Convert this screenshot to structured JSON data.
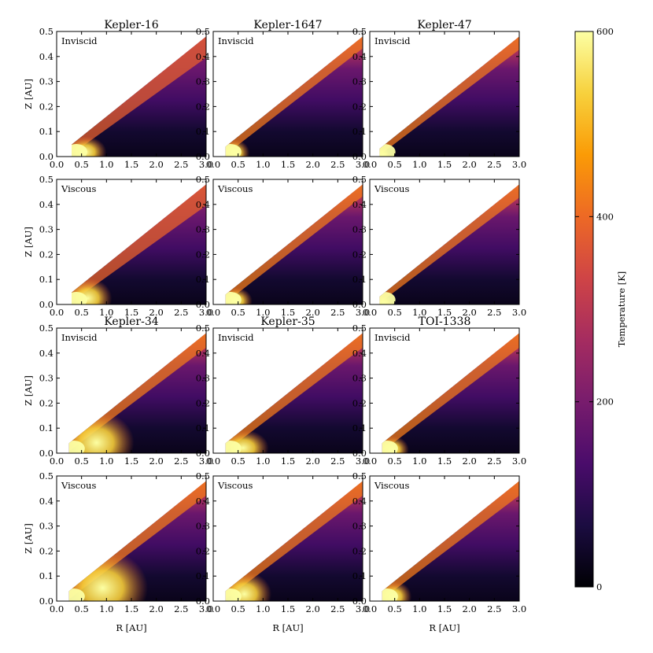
{
  "chart_data": {
    "type": "heatmap",
    "x_label": "R [AU]",
    "y_label": "Z [AU]",
    "x_ticks": [
      "0.0",
      "0.5",
      "1.0",
      "1.5",
      "2.0",
      "2.5",
      "3.0"
    ],
    "y_ticks": [
      "0.0",
      "0.1",
      "0.2",
      "0.3",
      "0.4",
      "0.5"
    ],
    "xlim": [
      0.0,
      3.0
    ],
    "ylim": [
      0.0,
      0.5
    ],
    "colorbar": {
      "label": "Temperature [K]",
      "range": [
        0,
        600
      ],
      "ticks": [
        "0",
        "200",
        "400",
        "600"
      ],
      "colormap": "inferno",
      "stops": [
        "#000004",
        "#1b0c41",
        "#4a0c6b",
        "#781c6d",
        "#a52c60",
        "#cf4446",
        "#ed6925",
        "#fb9b06",
        "#f7d13d",
        "#fcffa4"
      ]
    },
    "panels": [
      {
        "title": "Kepler-16",
        "label": "Inviscid",
        "star": "Kepler-16",
        "regime": "Inviscid",
        "edge_r": 0.3,
        "hot_r": 0.85,
        "hot_h": 0.05,
        "surf": 0.35,
        "band_h": 0.8
      },
      {
        "title": "Kepler-1647",
        "label": "Inviscid",
        "star": "Kepler-1647",
        "regime": "Inviscid",
        "edge_r": 0.25,
        "hot_r": 0.6,
        "hot_h": 0.04,
        "surf": 0.6,
        "band_h": 0.45
      },
      {
        "title": "Kepler-47",
        "label": "Inviscid",
        "star": "Kepler-47",
        "regime": "Inviscid",
        "edge_r": 0.2,
        "hot_r": 0.3,
        "hot_h": 0.015,
        "surf": 0.6,
        "band_h": 0.5
      },
      {
        "title": "",
        "label": "Viscous",
        "star": "Kepler-16",
        "regime": "Viscous",
        "edge_r": 0.3,
        "hot_r": 0.95,
        "hot_h": 0.07,
        "surf": 0.4,
        "band_h": 0.8
      },
      {
        "title": "",
        "label": "Viscous",
        "star": "Kepler-1647",
        "regime": "Viscous",
        "edge_r": 0.25,
        "hot_r": 0.65,
        "hot_h": 0.04,
        "surf": 0.62,
        "band_h": 0.45
      },
      {
        "title": "",
        "label": "Viscous",
        "star": "Kepler-47",
        "regime": "Viscous",
        "edge_r": 0.2,
        "hot_r": 0.35,
        "hot_h": 0.015,
        "surf": 0.6,
        "band_h": 0.5
      },
      {
        "title": "Kepler-34",
        "label": "Inviscid",
        "star": "Kepler-34",
        "regime": "Inviscid",
        "edge_r": 0.25,
        "hot_r": 1.35,
        "hot_h": 0.12,
        "surf": 0.62,
        "band_h": 0.55
      },
      {
        "title": "Kepler-35",
        "label": "Inviscid",
        "star": "Kepler-35",
        "regime": "Inviscid",
        "edge_r": 0.25,
        "hot_r": 0.95,
        "hot_h": 0.06,
        "surf": 0.62,
        "band_h": 0.55
      },
      {
        "title": "TOI-1338",
        "label": "Inviscid",
        "star": "TOI-1338",
        "regime": "Inviscid",
        "edge_r": 0.25,
        "hot_r": 0.65,
        "hot_h": 0.04,
        "surf": 0.62,
        "band_h": 0.55
      },
      {
        "title": "",
        "label": "Viscous",
        "star": "Kepler-34",
        "regime": "Viscous",
        "edge_r": 0.25,
        "hot_r": 1.6,
        "hot_h": 0.15,
        "surf": 0.62,
        "band_h": 0.55
      },
      {
        "title": "",
        "label": "Viscous",
        "star": "Kepler-35",
        "regime": "Viscous",
        "edge_r": 0.25,
        "hot_r": 1.0,
        "hot_h": 0.08,
        "surf": 0.62,
        "band_h": 0.55
      },
      {
        "title": "",
        "label": "Viscous",
        "star": "TOI-1338",
        "regime": "Viscous",
        "edge_r": 0.25,
        "hot_r": 0.7,
        "hot_h": 0.05,
        "surf": 0.62,
        "band_h": 0.55
      }
    ]
  }
}
